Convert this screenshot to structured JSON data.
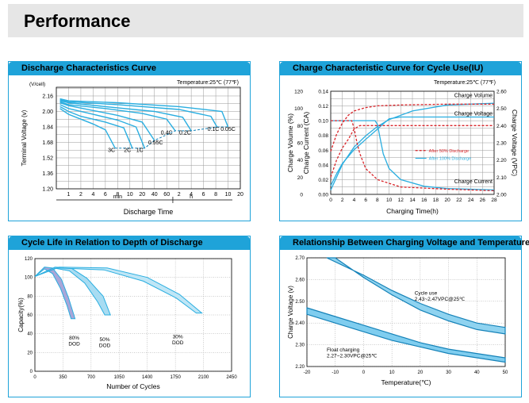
{
  "page_title": "Performance",
  "colors": {
    "accent": "#1fa3d9",
    "curve": "#2aaee0",
    "curve_dark": "#1582b8",
    "red": "#d9262b",
    "header_bg": "#e6e6e6"
  },
  "chart_data": [
    {
      "id": "discharge",
      "type": "line",
      "title": "Discharge Characteristics Curve",
      "temperature_note": "Temperature:25℃ (77℉)",
      "yunit": "(V/cell)",
      "ylabel": "Terminal Voltage  (v)",
      "xlabel": "Discharge  Time",
      "ylim": [
        1.2,
        2.25
      ],
      "yticks": [
        "2.16",
        "2.00",
        "1.84",
        "1.68",
        "1.52",
        "1.36",
        "1.20"
      ],
      "xticks": [
        "1",
        "2",
        "4",
        "6",
        "8",
        "10",
        "20",
        "40",
        "60",
        "2",
        "4",
        "6",
        "8",
        "10",
        "20"
      ],
      "x_unit_min": "min",
      "x_unit_h": "h",
      "grid": true,
      "series": [
        {
          "name": "3C",
          "x": [
            0.3,
            1,
            2,
            3,
            4,
            4.8
          ],
          "y": [
            2.03,
            1.97,
            1.92,
            1.87,
            1.81,
            1.62
          ]
        },
        {
          "name": "2C",
          "x": [
            0.3,
            1,
            2,
            4,
            5.5,
            6.2
          ],
          "y": [
            2.05,
            2.0,
            1.95,
            1.89,
            1.83,
            1.62
          ]
        },
        {
          "name": "1C",
          "x": [
            0.3,
            1,
            3,
            5,
            6.5,
            7.2
          ],
          "y": [
            2.07,
            2.03,
            1.97,
            1.91,
            1.84,
            1.62
          ]
        },
        {
          "name": "0.55C",
          "x": [
            0.3,
            1,
            3,
            5,
            7,
            8
          ],
          "y": [
            2.09,
            2.06,
            2.01,
            1.96,
            1.89,
            1.7
          ]
        },
        {
          "name": "0.4C",
          "x": [
            0.3,
            1,
            4,
            7,
            9,
            9.7
          ],
          "y": [
            2.1,
            2.07,
            2.03,
            1.98,
            1.92,
            1.8
          ]
        },
        {
          "name": "0.2C",
          "x": [
            0.3,
            1,
            4,
            8,
            10.3,
            11
          ],
          "y": [
            2.11,
            2.09,
            2.05,
            2.0,
            1.94,
            1.8
          ]
        },
        {
          "name": "0.1C",
          "x": [
            0.3,
            1,
            5,
            10,
            12.6,
            13.1
          ],
          "y": [
            2.12,
            2.1,
            2.07,
            2.02,
            1.95,
            1.84
          ]
        },
        {
          "name": "0.05C",
          "x": [
            0.3,
            1,
            5,
            10,
            13.5,
            14
          ],
          "y": [
            2.13,
            2.11,
            2.09,
            2.05,
            2.0,
            1.84
          ]
        }
      ],
      "cutoff_line": {
        "x": [
          4.8,
          6.2,
          7.2,
          8,
          9.7,
          11,
          13.1,
          14
        ],
        "y": [
          1.62,
          1.62,
          1.62,
          1.7,
          1.8,
          1.8,
          1.84,
          1.84
        ]
      },
      "labels": [
        {
          "text": "3C",
          "x": 4.5,
          "y": 1.58
        },
        {
          "text": "2C",
          "x": 5.8,
          "y": 1.58
        },
        {
          "text": "1C",
          "x": 6.8,
          "y": 1.58
        },
        {
          "text": "0.55C",
          "x": 8.1,
          "y": 1.66
        },
        {
          "text": "0.4C",
          "x": 9.0,
          "y": 1.76
        },
        {
          "text": "0.2C",
          "x": 10.5,
          "y": 1.76
        },
        {
          "text": "0.1C",
          "x": 12.8,
          "y": 1.8
        },
        {
          "text": "0.05C",
          "x": 14.0,
          "y": 1.8
        }
      ]
    },
    {
      "id": "charge",
      "type": "line",
      "title": "Charge Characteristic Curve for Cycle Use(IU)",
      "temperature_note": "Temperature:25℃ (77℉)",
      "xlabel": "Charging Time(h)",
      "ylabel_volume": "Charge Volume (%)",
      "ylabel_current": "Charge Current (CA)",
      "ylabel_voltage": "Charge Voltage (VPC)",
      "xlim": [
        0,
        28
      ],
      "xticks": [
        "0",
        "2",
        "4",
        "6",
        "8",
        "10",
        "12",
        "14",
        "16",
        "18",
        "20",
        "22",
        "24",
        "26",
        "28"
      ],
      "volume_ticks": [
        "120",
        "100",
        "80",
        "60",
        "40",
        "20",
        "0"
      ],
      "current_ticks": [
        "0.14",
        "0.12",
        "0.10",
        "0.08",
        "0.06",
        "0.04",
        "0.02",
        "0.00"
      ],
      "voltage_ticks": [
        "2.60",
        "2.50",
        "2.40",
        "2.30",
        "2.20",
        "2.10",
        "2.00"
      ],
      "grid": true,
      "curve_labels": [
        "Charge Volume",
        "Charge Voltage",
        "Charge Current"
      ],
      "legend": [
        "After 50% Discharge",
        "After 100% Discharge"
      ],
      "series": [
        {
          "name": "Charge Volume",
          "style": "solid",
          "axis": "volume",
          "x": [
            0,
            1,
            2,
            4,
            6,
            8,
            10,
            14,
            20,
            28
          ],
          "y": [
            5,
            20,
            35,
            55,
            68,
            79,
            87,
            97,
            104,
            106
          ]
        },
        {
          "name": "Charge Voltage",
          "style": "solid",
          "axis": "voltage",
          "x": [
            0,
            1,
            2,
            3,
            4,
            5,
            6,
            7,
            8,
            9,
            10,
            12,
            16,
            20,
            28
          ],
          "y": [
            2.05,
            2.12,
            2.18,
            2.22,
            2.26,
            2.29,
            2.32,
            2.35,
            2.38,
            2.41,
            2.44,
            2.45,
            2.45,
            2.45,
            2.45
          ]
        },
        {
          "name": "Charge Current",
          "style": "solid",
          "axis": "current",
          "x": [
            0,
            7.6,
            8,
            8.5,
            9,
            10,
            12,
            16,
            20,
            28
          ],
          "y": [
            0.1,
            0.1,
            0.095,
            0.075,
            0.055,
            0.035,
            0.02,
            0.011,
            0.008,
            0.006
          ]
        },
        {
          "name": "Charge Volume",
          "style": "dashed",
          "axis": "volume",
          "x": [
            0,
            1,
            2,
            3,
            4,
            6,
            8,
            12,
            20,
            28
          ],
          "y": [
            50,
            70,
            83,
            92,
            97,
            101,
            103,
            104,
            105,
            105
          ]
        },
        {
          "name": "Charge Voltage",
          "style": "dashed",
          "axis": "voltage",
          "x": [
            0,
            1,
            2,
            3,
            4,
            5,
            8,
            28
          ],
          "y": [
            2.1,
            2.2,
            2.27,
            2.32,
            2.38,
            2.4,
            2.4,
            2.4
          ]
        },
        {
          "name": "Charge Current",
          "style": "dashed",
          "axis": "current",
          "x": [
            0,
            3.6,
            4,
            4.5,
            5,
            6,
            8,
            12,
            20,
            28
          ],
          "y": [
            0.1,
            0.1,
            0.09,
            0.07,
            0.055,
            0.035,
            0.02,
            0.01,
            0.007,
            0.005
          ]
        }
      ]
    },
    {
      "id": "cyclelife",
      "type": "area",
      "title": "Cycle Life in Relation to Depth of Discharge",
      "xlabel": "Number of Cycles",
      "ylabel": "Capacity(%)",
      "xlim": [
        0,
        2450
      ],
      "ylim": [
        0,
        120
      ],
      "xticks": [
        "0",
        "350",
        "700",
        "1050",
        "1400",
        "1750",
        "2100",
        "2450"
      ],
      "yticks": [
        "120",
        "100",
        "80",
        "60",
        "40",
        "20",
        "0"
      ],
      "grid": true,
      "bands": [
        {
          "label": "80%\nDOD",
          "upper": {
            "x": [
              0,
              120,
              220,
              330,
              420,
              500
            ],
            "y": [
              101,
              111,
              110,
              98,
              78,
              56
            ]
          },
          "lower": {
            "x": [
              0,
              120,
              220,
              320,
              400,
              450
            ],
            "y": [
              101,
              109,
              104,
              88,
              70,
              56
            ]
          },
          "label_x": 490,
          "label_y": 34
        },
        {
          "label": "50%\nDOD",
          "upper": {
            "x": [
              0,
              250,
              450,
              650,
              850,
              940
            ],
            "y": [
              101,
              111,
              110,
              99,
              80,
              60
            ]
          },
          "lower": {
            "x": [
              0,
              230,
              430,
              620,
              780,
              870
            ],
            "y": [
              101,
              110,
              107,
              94,
              74,
              60
            ]
          },
          "label_x": 870,
          "label_y": 32
        },
        {
          "label": "30%\nDOD",
          "upper": {
            "x": [
              0,
              300,
              900,
              1400,
              1800,
              2080
            ],
            "y": [
              101,
              111,
              110,
              100,
              82,
              62
            ]
          },
          "lower": {
            "x": [
              0,
              280,
              860,
              1350,
              1760,
              2010
            ],
            "y": [
              101,
              110,
              108,
              96,
              78,
              62
            ]
          },
          "label_x": 1780,
          "label_y": 35
        }
      ]
    },
    {
      "id": "voltage_temp",
      "type": "area",
      "title": "Relationship Between Charging Voltage and Temperature",
      "xlabel": "Temperature(℃)",
      "ylabel": "Charge Voltage  (v)",
      "xlim": [
        -20,
        50
      ],
      "ylim": [
        2.2,
        2.7
      ],
      "xticks": [
        "-20",
        "-10",
        "0",
        "10",
        "20",
        "30",
        "40",
        "50"
      ],
      "yticks": [
        "2.70",
        "2.60",
        "2.50",
        "2.40",
        "2.30",
        "2.20"
      ],
      "grid": true,
      "bands": [
        {
          "label": "Cycle use\n2.43~2.47VPC@25℃",
          "upper": {
            "x": [
              -13,
              0,
              10,
              20,
              30,
              40,
              50
            ],
            "y": [
              2.7,
              2.62,
              2.55,
              2.49,
              2.44,
              2.4,
              2.38
            ]
          },
          "lower": {
            "x": [
              -10,
              0,
              10,
              20,
              30,
              40,
              50
            ],
            "y": [
              2.7,
              2.61,
              2.53,
              2.46,
              2.41,
              2.37,
              2.35
            ]
          },
          "label_x": 18,
          "label_y": 2.53
        },
        {
          "label": "Float charging\n2.27~2.30VPC@25℃",
          "upper": {
            "x": [
              -20,
              -10,
              0,
              10,
              20,
              30,
              40,
              50
            ],
            "y": [
              2.47,
              2.43,
              2.39,
              2.35,
              2.31,
              2.28,
              2.26,
              2.24
            ]
          },
          "lower": {
            "x": [
              -20,
              -10,
              0,
              10,
              20,
              30,
              40,
              50
            ],
            "y": [
              2.44,
              2.4,
              2.36,
              2.32,
              2.29,
              2.26,
              2.24,
              2.22
            ]
          },
          "label_x": -13,
          "label_y": 2.27
        }
      ]
    }
  ]
}
